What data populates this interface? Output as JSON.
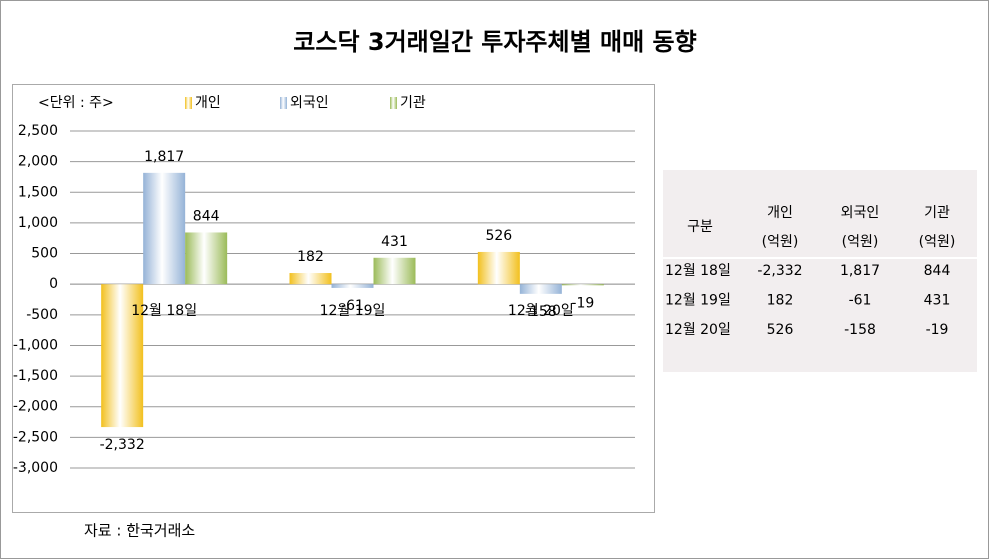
{
  "chart_data": {
    "type": "bar",
    "title": "코스닥 3거래일간 투자주체별 매매 동향",
    "unit_label": "<단위 : 주>",
    "categories": [
      "12월 18일",
      "12월 19일",
      "12월 20일"
    ],
    "series": [
      {
        "name": "개인",
        "color": "#f2c01e",
        "values": [
          -2332,
          182,
          526
        ],
        "value_labels": [
          "-2,332",
          "182",
          "526"
        ]
      },
      {
        "name": "외국인",
        "color": "#95b3d7",
        "values": [
          1817,
          -61,
          -158
        ],
        "value_labels": [
          "1,817",
          "-61",
          "-158"
        ]
      },
      {
        "name": "기관",
        "color": "#9bbb59",
        "values": [
          844,
          431,
          -19
        ],
        "value_labels": [
          "844",
          "431",
          "-19"
        ]
      }
    ],
    "ylim": [
      -3000,
      2500
    ],
    "yticks": [
      {
        "value": 2500,
        "label": "2,500"
      },
      {
        "value": 2000,
        "label": "2,000"
      },
      {
        "value": 1500,
        "label": "1,500"
      },
      {
        "value": 1000,
        "label": "1,000"
      },
      500,
      0,
      -500,
      {
        "value": -1000,
        "label": "-1,000"
      },
      {
        "value": -1500,
        "label": "-1,500"
      },
      {
        "value": -2000,
        "label": "-2,000"
      },
      {
        "value": -2500,
        "label": "-2,500"
      },
      {
        "value": -3000,
        "label": "-3,000"
      }
    ],
    "grid": true,
    "negative_color": "#e02020",
    "source": "자료 : 한국거래소"
  },
  "table": {
    "header": "구분",
    "columns": [
      {
        "name": "개인",
        "unit": "(억원)"
      },
      {
        "name": "외국인",
        "unit": "(억원)"
      },
      {
        "name": "기관",
        "unit": "(억원)"
      }
    ],
    "rows": [
      [
        "12월 18일",
        "-2,332",
        "1,817",
        "844"
      ],
      [
        "12월 19일",
        "182",
        "-61",
        "431"
      ],
      [
        "12월 20일",
        "526",
        "-158",
        "-19"
      ]
    ]
  }
}
